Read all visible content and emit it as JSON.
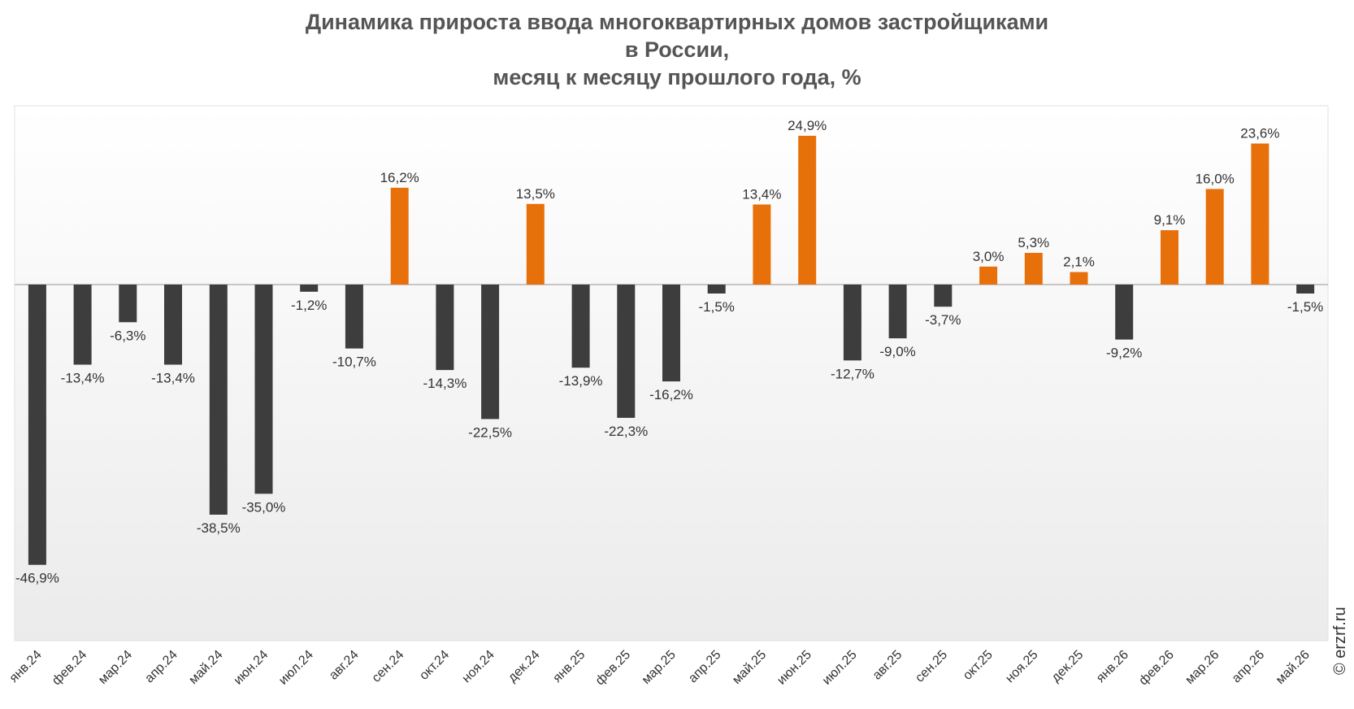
{
  "title_lines": [
    "Динамика прироста ввода многоквартирных домов застройщиками",
    "в России,",
    "месяц к месяцу прошлого года, %"
  ],
  "watermark": "© erzrf.ru",
  "colors": {
    "negative": "#3d3d3d",
    "positive": "#e8700a",
    "axis": "#b5b5b5",
    "label": "#333333"
  },
  "chart_data": {
    "type": "bar",
    "title": "Динамика прироста ввода многоквартирных домов застройщиками в России, месяц к месяцу прошлого года, %",
    "categories": [
      "янв.24",
      "фев.24",
      "мар.24",
      "апр.24",
      "май.24",
      "июн.24",
      "июл.24",
      "авг.24",
      "сен.24",
      "окт.24",
      "ноя.24",
      "дек.24",
      "янв.25",
      "фев.25",
      "мар.25",
      "апр.25",
      "май.25",
      "июн.25",
      "июл.25",
      "авг.25",
      "сен.25",
      "окт.25",
      "ноя.25",
      "дек.25",
      "янв.26",
      "фев.26",
      "мар.26",
      "апр.26",
      "май.26"
    ],
    "values": [
      -46.9,
      -13.4,
      -6.3,
      -13.4,
      -38.5,
      -35.0,
      -1.2,
      -10.7,
      16.2,
      -14.3,
      -22.5,
      13.5,
      -13.9,
      -22.3,
      -16.2,
      -1.5,
      13.4,
      24.9,
      -12.7,
      -9.0,
      -3.7,
      3.0,
      5.3,
      2.1,
      -9.2,
      9.1,
      16.0,
      23.6,
      -1.5
    ],
    "data_labels": [
      "-46,9%",
      "-13,4%",
      "-6,3%",
      "-13,4%",
      "-38,5%",
      "-35,0%",
      "-1,2%",
      "-10,7%",
      "16,2%",
      "-14,3%",
      "-22,5%",
      "13,5%",
      "-13,9%",
      "-22,3%",
      "-16,2%",
      "-1,5%",
      "13,4%",
      "24,9%",
      "-12,7%",
      "-9,0%",
      "-3,7%",
      "3,0%",
      "5,3%",
      "2,1%",
      "-9,2%",
      "9,1%",
      "16,0%",
      "23,6%",
      "-1,5%"
    ],
    "ylim": [
      -60,
      30
    ],
    "grid": false,
    "legend": "none"
  }
}
